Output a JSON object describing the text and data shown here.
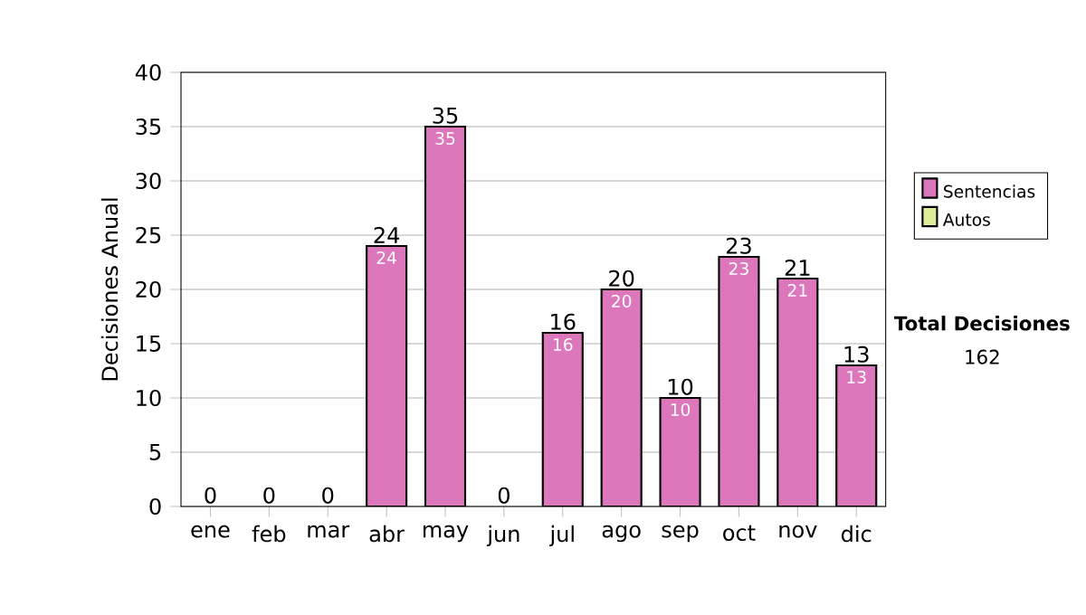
{
  "chart_data": {
    "type": "bar",
    "stacked": true,
    "ylabel": "Decisiones Anual",
    "categories": [
      "ene",
      "feb",
      "mar",
      "abr",
      "may",
      "jun",
      "jul",
      "ago",
      "sep",
      "oct",
      "nov",
      "dic"
    ],
    "series": [
      {
        "name": "Sentencias",
        "color": "#dd77bb",
        "values": [
          0,
          0,
          0,
          24,
          35,
          0,
          16,
          20,
          10,
          23,
          21,
          13
        ],
        "value_labels": [
          null,
          null,
          null,
          "24",
          "35",
          null,
          "16",
          "20",
          "10",
          "23",
          "21",
          "13"
        ]
      },
      {
        "name": "Autos",
        "color": "#ddee99",
        "values": [
          0,
          0,
          0,
          0,
          0,
          0,
          0,
          0,
          0,
          0,
          0,
          0
        ]
      }
    ],
    "totals": [
      "0",
      "0",
      "0",
      "24",
      "35",
      "0",
      "16",
      "20",
      "10",
      "23",
      "21",
      "13"
    ],
    "ylim": [
      0,
      40
    ],
    "yticks": [
      0,
      5,
      10,
      15,
      20,
      25,
      30,
      35,
      40
    ],
    "grid": "y",
    "legend": "right",
    "annotations": [
      "**Total Decisiones**",
      "162"
    ]
  }
}
